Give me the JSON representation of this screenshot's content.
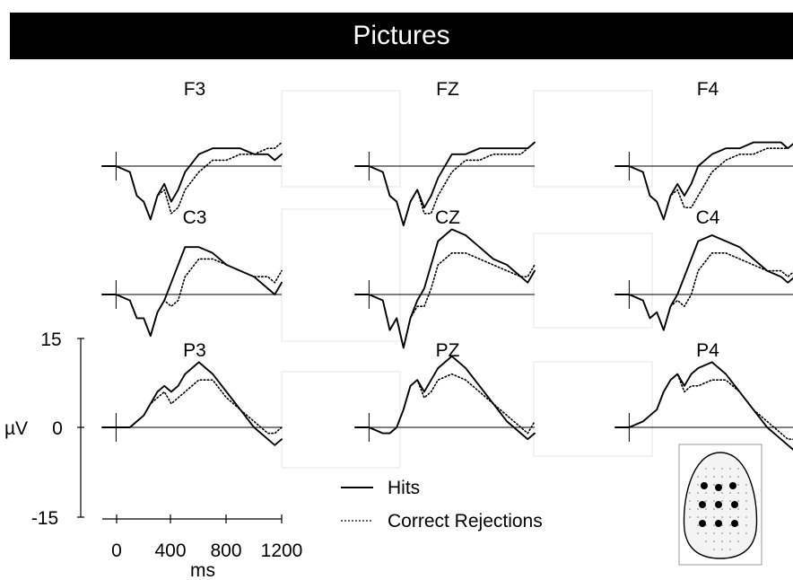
{
  "title": "Pictures",
  "chart_data": {
    "type": "line",
    "title": "Pictures",
    "xlabel": "ms",
    "ylabel": "µV",
    "x_ticks": [
      "0",
      "400",
      "800",
      "1200"
    ],
    "y_ticks": [
      "15",
      "0",
      "-15"
    ],
    "xlim": [
      -100,
      1200
    ],
    "ylim": [
      -15,
      15
    ],
    "legend": {
      "placement": "bottom-center",
      "entries": [
        {
          "label": "Hits",
          "style": "solid"
        },
        {
          "label": "Correct Rejections",
          "style": "dotted"
        }
      ]
    },
    "head_map": {
      "label": "electrode montage",
      "highlighted_electrodes": 9
    },
    "x": [
      -100,
      0,
      100,
      150,
      200,
      250,
      300,
      350,
      400,
      450,
      500,
      600,
      700,
      800,
      900,
      1000,
      1100,
      1150,
      1200
    ],
    "channels": [
      {
        "name": "F3",
        "series": [
          {
            "name": "Hits",
            "values": [
              0,
              0,
              -1,
              -5,
              -6,
              -9,
              -5,
              -3,
              -6,
              -4,
              -1,
              2,
              3,
              3,
              3,
              2,
              2,
              1,
              2
            ]
          },
          {
            "name": "Correct Rejections",
            "values": [
              0,
              0,
              -1,
              -5,
              -6,
              -9,
              -5,
              -4,
              -8,
              -7,
              -4,
              -1,
              1,
              1,
              2,
              2,
              3,
              3,
              4
            ]
          }
        ]
      },
      {
        "name": "FZ",
        "series": [
          {
            "name": "Hits",
            "values": [
              0,
              0,
              -1,
              -5,
              -6,
              -10,
              -6,
              -4,
              -7,
              -5,
              -2,
              2,
              2,
              3,
              3,
              3,
              3,
              3,
              4
            ]
          },
          {
            "name": "Correct Rejections",
            "values": [
              0,
              0,
              -1,
              -5,
              -6,
              -10,
              -6,
              -4,
              -8,
              -8,
              -5,
              -1,
              1,
              1,
              2,
              2,
              2,
              3,
              4
            ]
          }
        ]
      },
      {
        "name": "F4",
        "series": [
          {
            "name": "Hits",
            "values": [
              0,
              0,
              -1,
              -5,
              -6,
              -9,
              -5,
              -3,
              -5,
              -3,
              0,
              2,
              3,
              3,
              4,
              4,
              4,
              3,
              4
            ]
          },
          {
            "name": "Correct Rejections",
            "values": [
              0,
              0,
              -1,
              -5,
              -6,
              -9,
              -5,
              -4,
              -7,
              -7,
              -5,
              -1,
              1,
              2,
              2,
              3,
              3,
              3,
              4
            ]
          }
        ]
      },
      {
        "name": "C3",
        "series": [
          {
            "name": "Hits",
            "values": [
              0,
              0,
              -1,
              -4,
              -4,
              -7,
              -3,
              -1,
              2,
              5,
              8,
              8,
              7,
              5,
              4,
              3,
              1,
              0,
              2
            ]
          },
          {
            "name": "Correct Rejections",
            "values": [
              0,
              0,
              -1,
              -4,
              -4,
              -7,
              -3,
              -1,
              -2,
              -1,
              3,
              6,
              6,
              5,
              4,
              3,
              3,
              2,
              4
            ]
          }
        ]
      },
      {
        "name": "CZ",
        "series": [
          {
            "name": "Hits",
            "values": [
              0,
              0,
              -1,
              -6,
              -4,
              -9,
              -4,
              -1,
              1,
              5,
              9,
              11,
              10,
              8,
              6,
              5,
              3,
              2,
              4
            ]
          },
          {
            "name": "Correct Rejections",
            "values": [
              0,
              0,
              -1,
              -6,
              -4,
              -9,
              -4,
              -2,
              -2,
              1,
              5,
              7,
              7,
              6,
              5,
              4,
              3,
              3,
              5
            ]
          }
        ]
      },
      {
        "name": "C4",
        "series": [
          {
            "name": "Hits",
            "values": [
              0,
              0,
              -1,
              -4,
              -3,
              -6,
              -2,
              0,
              3,
              6,
              9,
              10,
              9,
              8,
              6,
              4,
              3,
              2,
              3
            ]
          },
          {
            "name": "Correct Rejections",
            "values": [
              0,
              0,
              -1,
              -4,
              -3,
              -6,
              -2,
              -1,
              -2,
              0,
              4,
              7,
              7,
              6,
              5,
              4,
              4,
              3,
              4
            ]
          }
        ]
      },
      {
        "name": "P3",
        "series": [
          {
            "name": "Hits",
            "values": [
              0,
              0,
              0,
              1,
              2,
              4,
              6,
              7,
              6,
              7,
              9,
              11,
              9,
              6,
              3,
              0,
              -2,
              -3,
              -2
            ]
          },
          {
            "name": "Correct Rejections",
            "values": [
              0,
              0,
              0,
              1,
              2,
              4,
              5,
              6,
              4,
              5,
              6,
              8,
              8,
              5,
              3,
              1,
              -1,
              -1,
              0
            ]
          }
        ]
      },
      {
        "name": "PZ",
        "series": [
          {
            "name": "Hits",
            "values": [
              0,
              0,
              -1,
              -1,
              0,
              3,
              7,
              8,
              6,
              8,
              10,
              12,
              10,
              7,
              4,
              1,
              -1,
              -2,
              -1
            ]
          },
          {
            "name": "Correct Rejections",
            "values": [
              0,
              0,
              -1,
              -1,
              0,
              3,
              7,
              8,
              5,
              6,
              8,
              9,
              8,
              6,
              4,
              2,
              0,
              -1,
              1
            ]
          }
        ]
      },
      {
        "name": "P4",
        "series": [
          {
            "name": "Hits",
            "values": [
              0,
              0,
              1,
              2,
              3,
              6,
              8,
              9,
              7,
              9,
              10,
              11,
              9,
              6,
              3,
              0,
              -2,
              -3,
              -4
            ]
          },
          {
            "name": "Correct Rejections",
            "values": [
              0,
              0,
              1,
              2,
              3,
              6,
              8,
              9,
              6,
              7,
              7,
              8,
              8,
              6,
              3,
              1,
              -1,
              -2,
              -2
            ]
          }
        ]
      }
    ]
  }
}
